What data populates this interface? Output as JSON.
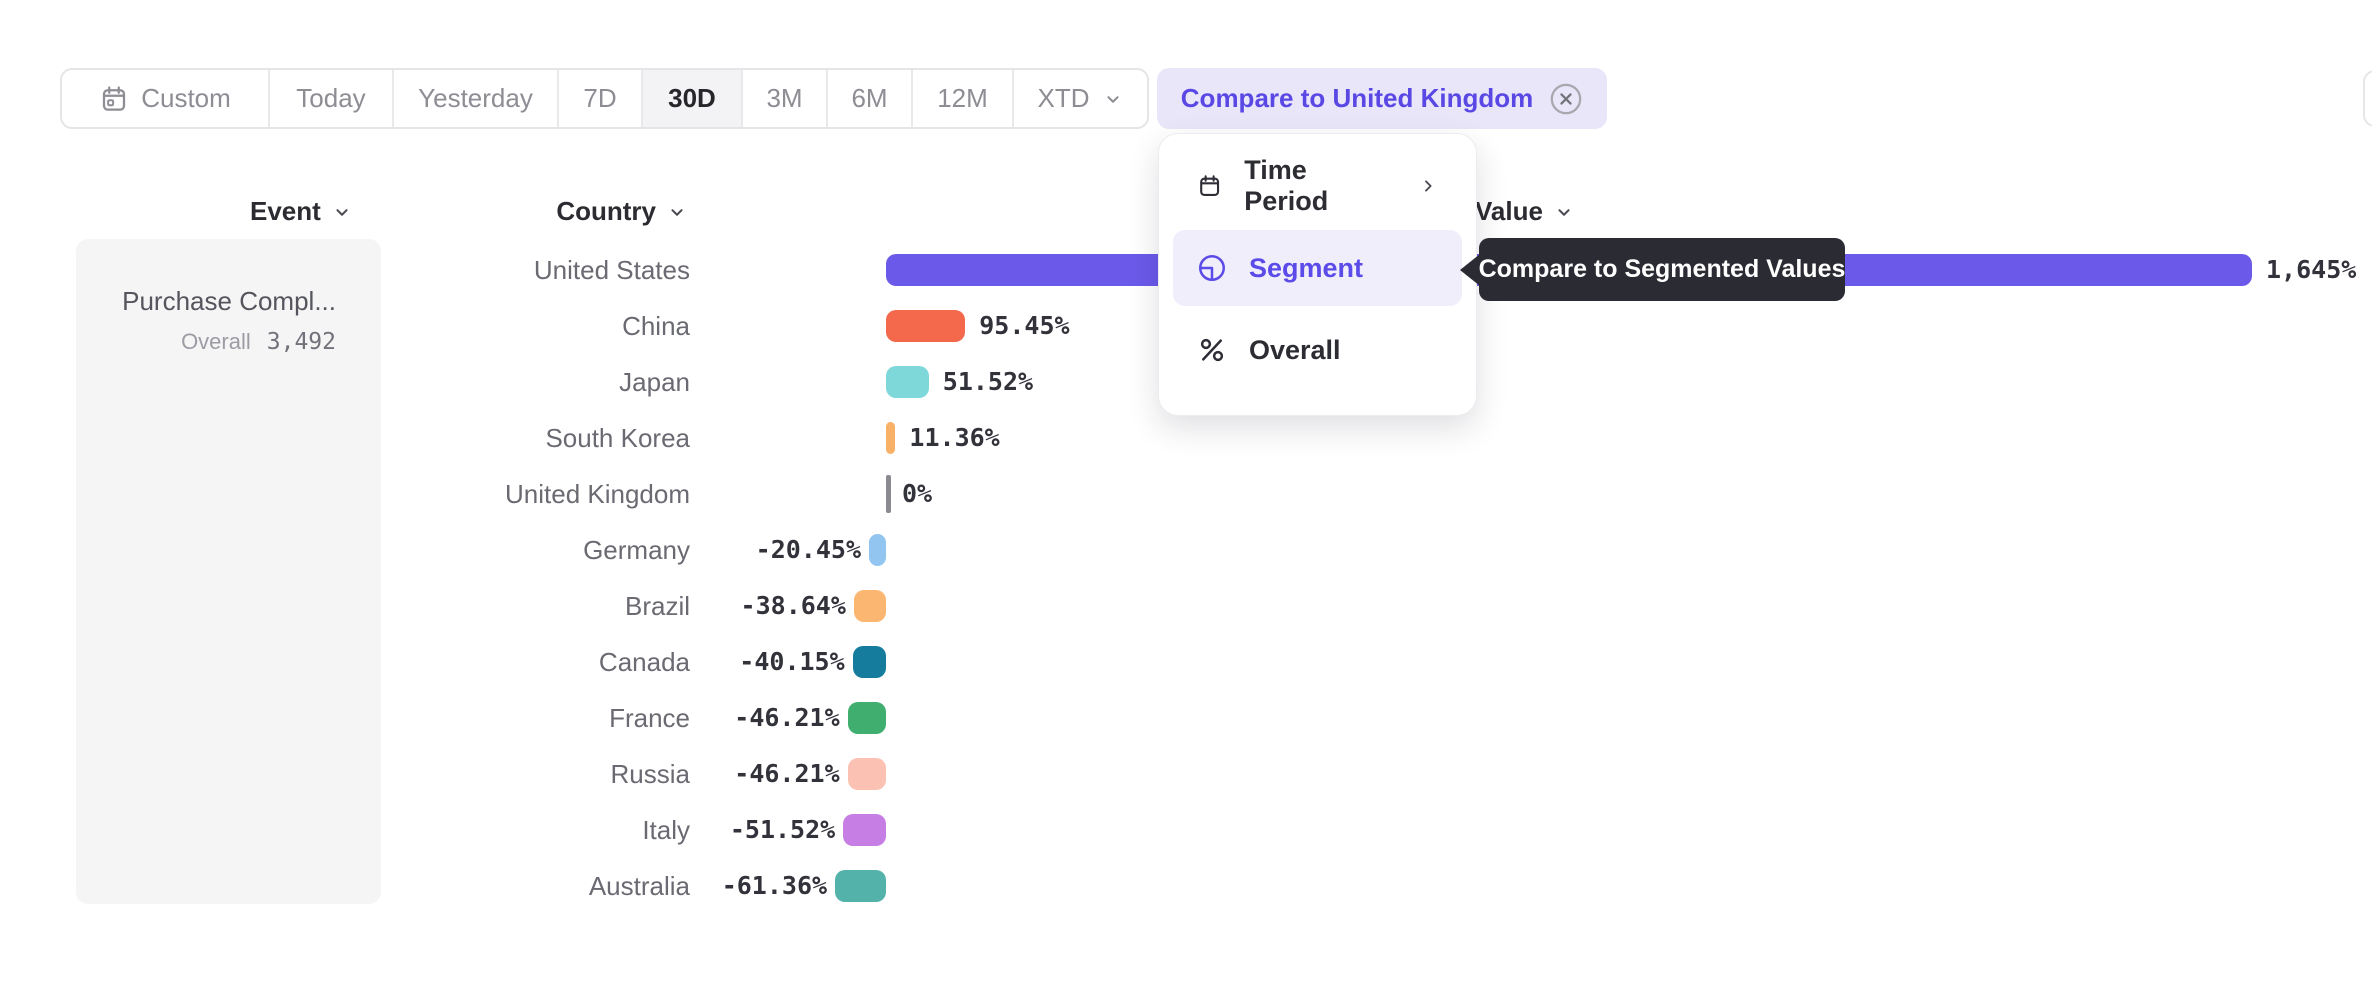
{
  "toolbar": {
    "ranges": [
      {
        "label": "Custom",
        "icon": "calendar",
        "selected": false
      },
      {
        "label": "Today",
        "selected": false
      },
      {
        "label": "Yesterday",
        "selected": false
      },
      {
        "label": "7D",
        "selected": false
      },
      {
        "label": "30D",
        "selected": true
      },
      {
        "label": "3M",
        "selected": false
      },
      {
        "label": "6M",
        "selected": false
      },
      {
        "label": "12M",
        "selected": false
      },
      {
        "label": "XTD",
        "chevron": true,
        "selected": false
      }
    ],
    "compare_chip_label": "Compare to United Kingdom"
  },
  "columns": {
    "event": "Event",
    "country": "Country",
    "value": "Value"
  },
  "event_panel": {
    "event_name": "Purchase Compl...",
    "overall_label": "Overall",
    "overall_value": "3,492"
  },
  "menu": {
    "items": [
      {
        "label": "Time Period",
        "icon": "calendar-icon",
        "has_submenu": true,
        "selected": false
      },
      {
        "label": "Segment",
        "icon": "segment-icon",
        "has_submenu": false,
        "selected": true
      },
      {
        "label": "Overall",
        "icon": "percent-icon",
        "has_submenu": false,
        "selected": false
      }
    ]
  },
  "tooltip": {
    "text": "Compare to Segmented Values"
  },
  "chart_data": {
    "type": "bar",
    "orientation": "horizontal",
    "title": "",
    "xlabel": "Value",
    "ylabel": "Country",
    "categories": [
      "United States",
      "China",
      "Japan",
      "South Korea",
      "United Kingdom",
      "Germany",
      "Brazil",
      "Canada",
      "France",
      "Russia",
      "Italy",
      "Australia"
    ],
    "values": [
      1645,
      95.45,
      51.52,
      11.36,
      0,
      -20.45,
      -38.64,
      -40.15,
      -46.21,
      -46.21,
      -51.52,
      -61.36
    ],
    "value_labels": [
      "1,645%",
      "95.45%",
      "51.52%",
      "11.36%",
      "0%",
      "-20.45%",
      "-38.64%",
      "-40.15%",
      "-46.21%",
      "-46.21%",
      "-51.52%",
      "-61.36%"
    ],
    "bar_colors": [
      "#6b59ea",
      "#f4684c",
      "#7ed8da",
      "#f9b168",
      "#8a8a90",
      "#92c6f0",
      "#fbb671",
      "#157c9e",
      "#3fae6e",
      "#fbc2b3",
      "#c67ee4",
      "#53b3aa"
    ],
    "dotted_pattern": [
      false,
      false,
      false,
      false,
      false,
      true,
      true,
      false,
      false,
      false,
      false,
      false
    ],
    "x_range": [
      -61.36,
      1645
    ],
    "zero_baseline": true,
    "grid": false,
    "legend": false
  },
  "colors": {
    "accent_purple": "#6b59ea",
    "chip_bg": "#e9e6fa",
    "chip_text": "#5a48e5",
    "menu_selected_bg": "#f1eefc",
    "tooltip_bg": "#2b2b33",
    "panel_bg": "#f5f5f6"
  }
}
